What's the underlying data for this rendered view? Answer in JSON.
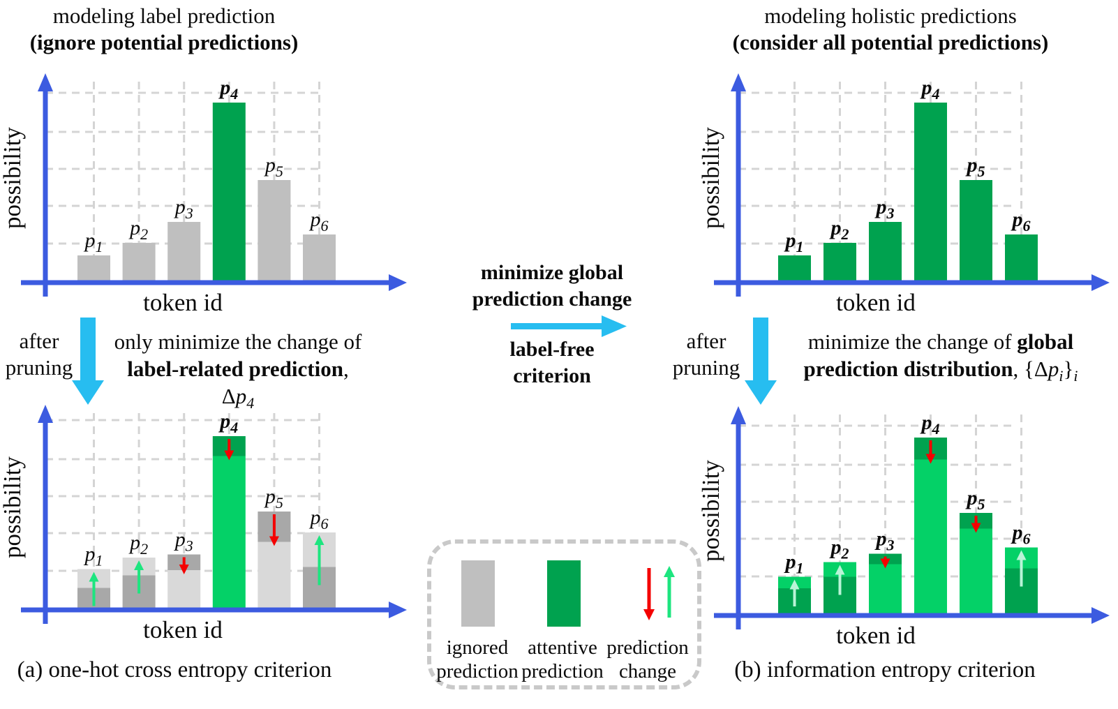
{
  "colors": {
    "axis_blue": "#3c5be0",
    "grid_gray": "#d4d4d4",
    "bar_gray": "#bfbfbf",
    "bar_gray_light": "#d9d9d9",
    "bar_gray_dark": "#a8a8a8",
    "green_attentive": "#00a24f",
    "green_bright": "#04d167",
    "arrow_red": "#f40000",
    "arrow_spring_green": "#1de57f",
    "arrow_pale_green": "#b9f4d7",
    "cyan_arrow": "#27bdf0",
    "text_black": "#0b0b0b"
  },
  "panels": {
    "top_left": {
      "title_line1": "modeling label prediction",
      "title_line2": "(ignore potential predictions)"
    },
    "top_right": {
      "title_line1": "modeling holistic predictions",
      "title_line2": "(consider all potential predictions)"
    }
  },
  "flow": {
    "center_top_line1": "minimize global",
    "center_top_line2": "prediction change",
    "center_bottom_line1": "label-free",
    "center_bottom_line2": "criterion",
    "left_after_line1": "after",
    "left_after_line2": "pruning",
    "right_after_line1": "after",
    "right_after_line2": "pruning",
    "left_note_line1": "only minimize the change of",
    "left_note_line2_bold": "label-related prediction",
    "left_note_line2_sep": ", Δ",
    "left_note_line2_var": "p",
    "left_note_line2_sub": "4",
    "right_note_line1_normal": "minimize the change of ",
    "right_note_line1_bold": "global",
    "right_note_line2_bold": "prediction distribution",
    "right_note_line2_sep": ", {Δ",
    "right_note_line2_var": "p",
    "right_note_line2_sub": "i",
    "right_note_line2_close": "}",
    "right_note_line2_outersub": "i"
  },
  "legend": {
    "items": [
      {
        "swatch": "gray-bar",
        "line1": "ignored",
        "line2": "prediction"
      },
      {
        "swatch": "green-bar",
        "line1": "attentive",
        "line2": "prediction"
      },
      {
        "swatch": "change-arrows",
        "line1": "prediction",
        "line2": "change"
      }
    ]
  },
  "captions": {
    "a": "(a) one-hot cross entropy criterion",
    "b": "(b) information entropy criterion"
  },
  "chart_data": [
    {
      "id": "before-pruning-label",
      "type": "bar",
      "title": "modeling label prediction (ignore potential predictions)",
      "xlabel": "token id",
      "ylabel": "possibility",
      "ylim": [
        0,
        1
      ],
      "grid": true,
      "categories": [
        "p1",
        "p2",
        "p3",
        "p4",
        "p5",
        "p6"
      ],
      "values": [
        0.13,
        0.19,
        0.29,
        0.86,
        0.49,
        0.23
      ],
      "bar_styles": [
        "gray",
        "gray",
        "gray",
        "green",
        "gray",
        "gray"
      ],
      "label_bold": [
        false,
        false,
        false,
        true,
        false,
        false
      ]
    },
    {
      "id": "before-pruning-holistic",
      "type": "bar",
      "title": "modeling holistic predictions (consider all potential predictions)",
      "xlabel": "token id",
      "ylabel": "possibility",
      "ylim": [
        0,
        1
      ],
      "grid": true,
      "categories": [
        "p1",
        "p2",
        "p3",
        "p4",
        "p5",
        "p6"
      ],
      "values": [
        0.13,
        0.19,
        0.29,
        0.86,
        0.49,
        0.23
      ],
      "bar_styles": [
        "green",
        "green",
        "green",
        "green",
        "green",
        "green"
      ],
      "label_bold": [
        true,
        true,
        true,
        true,
        true,
        true
      ]
    },
    {
      "id": "after-pruning-one-hot",
      "type": "stacked-change-bar",
      "title": "after pruning, one-hot cross entropy criterion",
      "xlabel": "token id",
      "ylabel": "possibility",
      "ylim": [
        0,
        1
      ],
      "grid": true,
      "bars": [
        {
          "category": "p1",
          "base": 0.105,
          "delta": 0.09,
          "direction": "up",
          "style": "gray"
        },
        {
          "category": "p2",
          "base": 0.165,
          "delta": 0.085,
          "direction": "up",
          "style": "gray"
        },
        {
          "category": "p3",
          "base": 0.19,
          "delta": 0.075,
          "direction": "down",
          "style": "gray"
        },
        {
          "category": "p4",
          "base": 0.735,
          "delta": 0.095,
          "direction": "down",
          "style": "green"
        },
        {
          "category": "p5",
          "base": 0.325,
          "delta": 0.145,
          "direction": "down",
          "style": "gray"
        },
        {
          "category": "p6",
          "base": 0.205,
          "delta": 0.165,
          "direction": "up",
          "style": "gray"
        }
      ],
      "label_bold": [
        false,
        false,
        false,
        true,
        false,
        false
      ]
    },
    {
      "id": "after-pruning-entropy",
      "type": "stacked-change-bar",
      "title": "after pruning, information entropy criterion",
      "xlabel": "token id",
      "ylabel": "possibility",
      "ylim": [
        0,
        1
      ],
      "grid": true,
      "bars": [
        {
          "category": "p1",
          "base": 0.13,
          "delta": 0.055,
          "direction": "up",
          "style": "green"
        },
        {
          "category": "p2",
          "base": 0.185,
          "delta": 0.07,
          "direction": "up",
          "style": "green"
        },
        {
          "category": "p3",
          "base": 0.245,
          "delta": 0.05,
          "direction": "down",
          "style": "green"
        },
        {
          "category": "p4",
          "base": 0.745,
          "delta": 0.105,
          "direction": "down",
          "style": "green"
        },
        {
          "category": "p5",
          "base": 0.415,
          "delta": 0.075,
          "direction": "down",
          "style": "green"
        },
        {
          "category": "p6",
          "base": 0.225,
          "delta": 0.1,
          "direction": "up",
          "style": "green"
        }
      ],
      "label_bold": [
        true,
        true,
        true,
        true,
        true,
        true
      ]
    }
  ]
}
